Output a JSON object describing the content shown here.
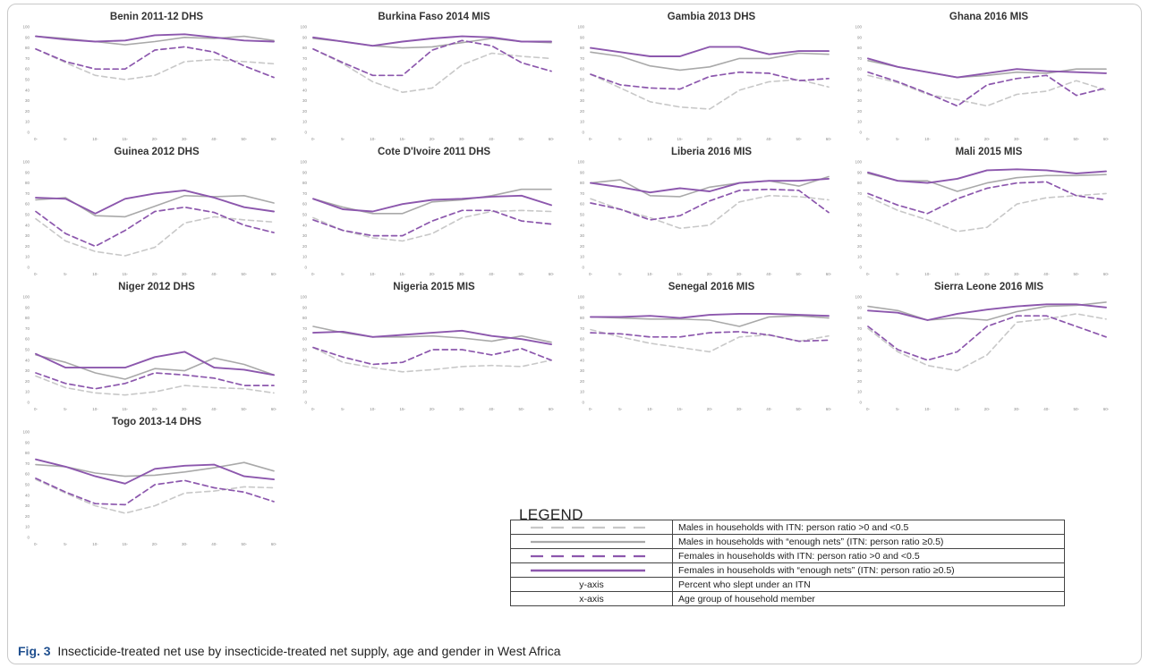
{
  "colors": {
    "males_lt": "#c8c8c8",
    "males_enough": "#a9a9a9",
    "females_lt": "#8c57ad",
    "females_enough": "#8c57ad"
  },
  "chart_data": [
    {
      "type": "line",
      "title": "Benin 2011-12 DHS",
      "x": [
        "0-",
        "5-",
        "10-",
        "15-",
        "20-",
        "30-",
        "40-",
        "50-",
        "60-"
      ],
      "ylim": [
        0,
        100
      ],
      "yticks": [
        0,
        10,
        20,
        30,
        40,
        50,
        60,
        70,
        80,
        90,
        100
      ],
      "series": [
        {
          "key": "males_lt",
          "values": [
            79,
            66,
            54,
            50,
            54,
            67,
            69,
            67,
            65
          ]
        },
        {
          "key": "males_enough",
          "values": [
            91,
            89,
            86,
            83,
            86,
            90,
            89,
            91,
            87
          ]
        },
        {
          "key": "females_lt",
          "values": [
            79,
            67,
            60,
            60,
            78,
            81,
            76,
            63,
            52
          ]
        },
        {
          "key": "females_enough",
          "values": [
            91,
            88,
            86,
            87,
            92,
            93,
            90,
            87,
            86
          ]
        }
      ]
    },
    {
      "type": "line",
      "title": "Burkina Faso 2014 MIS",
      "x": [
        "0-",
        "5-",
        "10-",
        "15-",
        "20-",
        "30-",
        "40-",
        "50-",
        "60-"
      ],
      "ylim": [
        0,
        100
      ],
      "yticks": [
        0,
        10,
        20,
        30,
        40,
        50,
        60,
        70,
        80,
        90,
        100
      ],
      "series": [
        {
          "key": "males_lt",
          "values": [
            79,
            65,
            48,
            38,
            42,
            64,
            75,
            72,
            70
          ]
        },
        {
          "key": "males_enough",
          "values": [
            89,
            86,
            82,
            80,
            81,
            85,
            89,
            86,
            85
          ]
        },
        {
          "key": "females_lt",
          "values": [
            79,
            66,
            54,
            54,
            78,
            87,
            82,
            66,
            58
          ]
        },
        {
          "key": "females_enough",
          "values": [
            90,
            86,
            82,
            86,
            89,
            91,
            90,
            86,
            86
          ]
        }
      ]
    },
    {
      "type": "line",
      "title": "Gambia 2013 DHS",
      "x": [
        "0-",
        "5-",
        "10-",
        "15-",
        "20-",
        "30-",
        "40-",
        "50-",
        "60-"
      ],
      "ylim": [
        0,
        100
      ],
      "yticks": [
        0,
        10,
        20,
        30,
        40,
        50,
        60,
        70,
        80,
        90,
        100
      ],
      "series": [
        {
          "key": "males_lt",
          "values": [
            55,
            42,
            29,
            24,
            22,
            40,
            48,
            50,
            43
          ]
        },
        {
          "key": "males_enough",
          "values": [
            76,
            72,
            63,
            59,
            62,
            70,
            70,
            75,
            74
          ]
        },
        {
          "key": "females_lt",
          "values": [
            55,
            45,
            42,
            41,
            53,
            57,
            56,
            49,
            51
          ]
        },
        {
          "key": "females_enough",
          "values": [
            80,
            76,
            72,
            72,
            81,
            81,
            74,
            77,
            77
          ]
        }
      ]
    },
    {
      "type": "line",
      "title": "Ghana 2016 MIS",
      "x": [
        "0-",
        "5-",
        "10-",
        "15-",
        "20-",
        "30-",
        "40-",
        "50-",
        "60-"
      ],
      "ylim": [
        0,
        100
      ],
      "yticks": [
        0,
        10,
        20,
        30,
        40,
        50,
        60,
        70,
        80,
        90,
        100
      ],
      "series": [
        {
          "key": "males_lt",
          "values": [
            54,
            47,
            36,
            31,
            25,
            36,
            39,
            49,
            40
          ]
        },
        {
          "key": "males_enough",
          "values": [
            68,
            62,
            57,
            52,
            54,
            57,
            56,
            60,
            60
          ]
        },
        {
          "key": "females_lt",
          "values": [
            57,
            48,
            37,
            25,
            45,
            51,
            54,
            35,
            42
          ]
        },
        {
          "key": "females_enough",
          "values": [
            70,
            62,
            57,
            52,
            56,
            60,
            58,
            57,
            56
          ]
        }
      ]
    },
    {
      "type": "line",
      "title": "Guinea 2012 DHS",
      "x": [
        "0-",
        "5-",
        "10-",
        "15-",
        "20-",
        "30-",
        "40-",
        "50-",
        "60-"
      ],
      "ylim": [
        0,
        100
      ],
      "yticks": [
        0,
        10,
        20,
        30,
        40,
        50,
        60,
        70,
        80,
        90,
        100
      ],
      "series": [
        {
          "key": "males_lt",
          "values": [
            46,
            25,
            15,
            11,
            19,
            42,
            48,
            45,
            43
          ]
        },
        {
          "key": "males_enough",
          "values": [
            64,
            66,
            49,
            48,
            58,
            68,
            67,
            68,
            61
          ]
        },
        {
          "key": "females_lt",
          "values": [
            53,
            32,
            20,
            35,
            53,
            57,
            52,
            40,
            33
          ]
        },
        {
          "key": "females_enough",
          "values": [
            66,
            65,
            51,
            65,
            70,
            73,
            66,
            57,
            53
          ]
        }
      ]
    },
    {
      "type": "line",
      "title": "Cote D'Ivoire  2011 DHS",
      "x": [
        "0-",
        "5-",
        "10-",
        "15-",
        "20-",
        "30-",
        "40-",
        "50-",
        "60-"
      ],
      "ylim": [
        0,
        100
      ],
      "yticks": [
        0,
        10,
        20,
        30,
        40,
        50,
        60,
        70,
        80,
        90,
        100
      ],
      "series": [
        {
          "key": "males_lt",
          "values": [
            47,
            35,
            28,
            25,
            32,
            47,
            53,
            54,
            53
          ]
        },
        {
          "key": "males_enough",
          "values": [
            65,
            57,
            51,
            51,
            62,
            64,
            68,
            74,
            74
          ]
        },
        {
          "key": "females_lt",
          "values": [
            45,
            35,
            30,
            30,
            44,
            54,
            54,
            44,
            41
          ]
        },
        {
          "key": "females_enough",
          "values": [
            65,
            55,
            53,
            60,
            64,
            65,
            67,
            68,
            59
          ]
        }
      ]
    },
    {
      "type": "line",
      "title": "Liberia 2016 MIS",
      "x": [
        "0-",
        "5-",
        "10-",
        "15-",
        "20-",
        "30-",
        "40-",
        "50-",
        "60-"
      ],
      "ylim": [
        0,
        100
      ],
      "yticks": [
        0,
        10,
        20,
        30,
        40,
        50,
        60,
        70,
        80,
        90,
        100
      ],
      "series": [
        {
          "key": "males_lt",
          "values": [
            65,
            55,
            47,
            37,
            40,
            62,
            68,
            67,
            64
          ]
        },
        {
          "key": "males_enough",
          "values": [
            80,
            83,
            68,
            67,
            76,
            80,
            82,
            77,
            86
          ]
        },
        {
          "key": "females_lt",
          "values": [
            61,
            55,
            45,
            49,
            63,
            73,
            74,
            73,
            52
          ]
        },
        {
          "key": "females_enough",
          "values": [
            80,
            76,
            71,
            75,
            72,
            80,
            82,
            82,
            84
          ]
        }
      ]
    },
    {
      "type": "line",
      "title": "Mali 2015 MIS",
      "x": [
        "0-",
        "5-",
        "10-",
        "15-",
        "20-",
        "30-",
        "40-",
        "50-",
        "60-"
      ],
      "ylim": [
        0,
        100
      ],
      "yticks": [
        0,
        10,
        20,
        30,
        40,
        50,
        60,
        70,
        80,
        90,
        100
      ],
      "series": [
        {
          "key": "males_lt",
          "values": [
            67,
            54,
            45,
            34,
            38,
            60,
            66,
            68,
            70
          ]
        },
        {
          "key": "males_enough",
          "values": [
            89,
            82,
            82,
            72,
            80,
            85,
            87,
            87,
            88
          ]
        },
        {
          "key": "females_lt",
          "values": [
            70,
            59,
            51,
            65,
            75,
            80,
            81,
            68,
            64
          ]
        },
        {
          "key": "females_enough",
          "values": [
            90,
            82,
            80,
            84,
            92,
            93,
            92,
            89,
            91
          ]
        }
      ]
    },
    {
      "type": "line",
      "title": "Niger 2012 DHS",
      "x": [
        "0-",
        "5-",
        "10-",
        "15-",
        "20-",
        "30-",
        "40-",
        "50-",
        "60-"
      ],
      "ylim": [
        0,
        100
      ],
      "yticks": [
        0,
        10,
        20,
        30,
        40,
        50,
        60,
        70,
        80,
        90,
        100
      ],
      "series": [
        {
          "key": "males_lt",
          "values": [
            25,
            14,
            9,
            7,
            10,
            16,
            14,
            13,
            9
          ]
        },
        {
          "key": "males_enough",
          "values": [
            45,
            38,
            28,
            22,
            32,
            30,
            42,
            36,
            26
          ]
        },
        {
          "key": "females_lt",
          "values": [
            28,
            18,
            13,
            18,
            28,
            26,
            23,
            16,
            16
          ]
        },
        {
          "key": "females_enough",
          "values": [
            46,
            33,
            33,
            33,
            43,
            48,
            33,
            31,
            26
          ]
        }
      ]
    },
    {
      "type": "line",
      "title": "Nigeria 2015 MIS",
      "x": [
        "0-",
        "5-",
        "10-",
        "15-",
        "20-",
        "30-",
        "40-",
        "50-",
        "60-"
      ],
      "ylim": [
        0,
        100
      ],
      "yticks": [
        0,
        10,
        20,
        30,
        40,
        50,
        60,
        70,
        80,
        90,
        100
      ],
      "series": [
        {
          "key": "males_lt",
          "values": [
            52,
            38,
            33,
            29,
            31,
            34,
            35,
            34,
            40
          ]
        },
        {
          "key": "males_enough",
          "values": [
            72,
            66,
            62,
            62,
            63,
            61,
            58,
            63,
            57
          ]
        },
        {
          "key": "females_lt",
          "values": [
            52,
            43,
            36,
            38,
            50,
            50,
            45,
            51,
            40
          ]
        },
        {
          "key": "females_enough",
          "values": [
            66,
            67,
            62,
            64,
            66,
            68,
            63,
            60,
            55
          ]
        }
      ]
    },
    {
      "type": "line",
      "title": "Senegal 2016 MIS",
      "x": [
        "0-",
        "5-",
        "10-",
        "15-",
        "20-",
        "30-",
        "40-",
        "50-",
        "60-"
      ],
      "ylim": [
        0,
        100
      ],
      "yticks": [
        0,
        10,
        20,
        30,
        40,
        50,
        60,
        70,
        80,
        90,
        100
      ],
      "series": [
        {
          "key": "males_lt",
          "values": [
            69,
            62,
            56,
            52,
            48,
            62,
            64,
            58,
            63
          ]
        },
        {
          "key": "males_enough",
          "values": [
            81,
            80,
            79,
            79,
            78,
            72,
            81,
            82,
            80
          ]
        },
        {
          "key": "females_lt",
          "values": [
            66,
            65,
            62,
            62,
            66,
            67,
            64,
            58,
            59
          ]
        },
        {
          "key": "females_enough",
          "values": [
            81,
            81,
            82,
            80,
            83,
            84,
            84,
            83,
            82
          ]
        }
      ]
    },
    {
      "type": "line",
      "title": "Sierra Leone 2016 MIS",
      "x": [
        "0-",
        "5-",
        "10-",
        "15-",
        "20-",
        "30-",
        "40-",
        "50-",
        "60-"
      ],
      "ylim": [
        0,
        100
      ],
      "yticks": [
        0,
        10,
        20,
        30,
        40,
        50,
        60,
        70,
        80,
        90,
        100
      ],
      "series": [
        {
          "key": "males_lt",
          "values": [
            70,
            48,
            35,
            30,
            45,
            76,
            79,
            84,
            79
          ]
        },
        {
          "key": "males_enough",
          "values": [
            91,
            87,
            78,
            80,
            78,
            86,
            91,
            92,
            95
          ]
        },
        {
          "key": "females_lt",
          "values": [
            72,
            50,
            40,
            48,
            72,
            82,
            82,
            72,
            62
          ]
        },
        {
          "key": "females_enough",
          "values": [
            87,
            85,
            78,
            84,
            88,
            91,
            93,
            93,
            90
          ]
        }
      ]
    },
    {
      "type": "line",
      "title": "Togo 2013-14 DHS",
      "x": [
        "0-",
        "5-",
        "10-",
        "15-",
        "20-",
        "30-",
        "40-",
        "50-",
        "60-"
      ],
      "ylim": [
        0,
        100
      ],
      "yticks": [
        0,
        10,
        20,
        30,
        40,
        50,
        60,
        70,
        80,
        90,
        100
      ],
      "series": [
        {
          "key": "males_lt",
          "values": [
            55,
            42,
            30,
            23,
            30,
            42,
            44,
            48,
            47
          ]
        },
        {
          "key": "males_enough",
          "values": [
            69,
            67,
            61,
            58,
            59,
            62,
            66,
            71,
            63
          ]
        },
        {
          "key": "females_lt",
          "values": [
            56,
            43,
            32,
            31,
            50,
            54,
            47,
            43,
            34
          ]
        },
        {
          "key": "females_enough",
          "values": [
            74,
            67,
            58,
            51,
            65,
            68,
            69,
            58,
            55
          ]
        }
      ]
    }
  ],
  "legend": {
    "heading": "LEGEND",
    "rows": [
      {
        "key": "males_lt",
        "label": "Males in households with ITN: person ratio >0 and <0.5"
      },
      {
        "key": "males_enough",
        "label": "Males in households with “enough nets” (ITN: person ratio ≥0.5)"
      },
      {
        "key": "females_lt",
        "label": "Females in households with ITN: person ratio >0 and <0.5"
      },
      {
        "key": "females_enough",
        "label": "Females in households with “enough nets” (ITN: person ratio ≥0.5)"
      },
      {
        "key": "y-axis",
        "label": "Percent who slept under an ITN"
      },
      {
        "key": "x-axis",
        "label": "Age group of household member"
      }
    ]
  },
  "caption": {
    "label": "Fig. 3",
    "text": "Insecticide-treated net use by insecticide-treated net supply, age and gender in West Africa"
  }
}
